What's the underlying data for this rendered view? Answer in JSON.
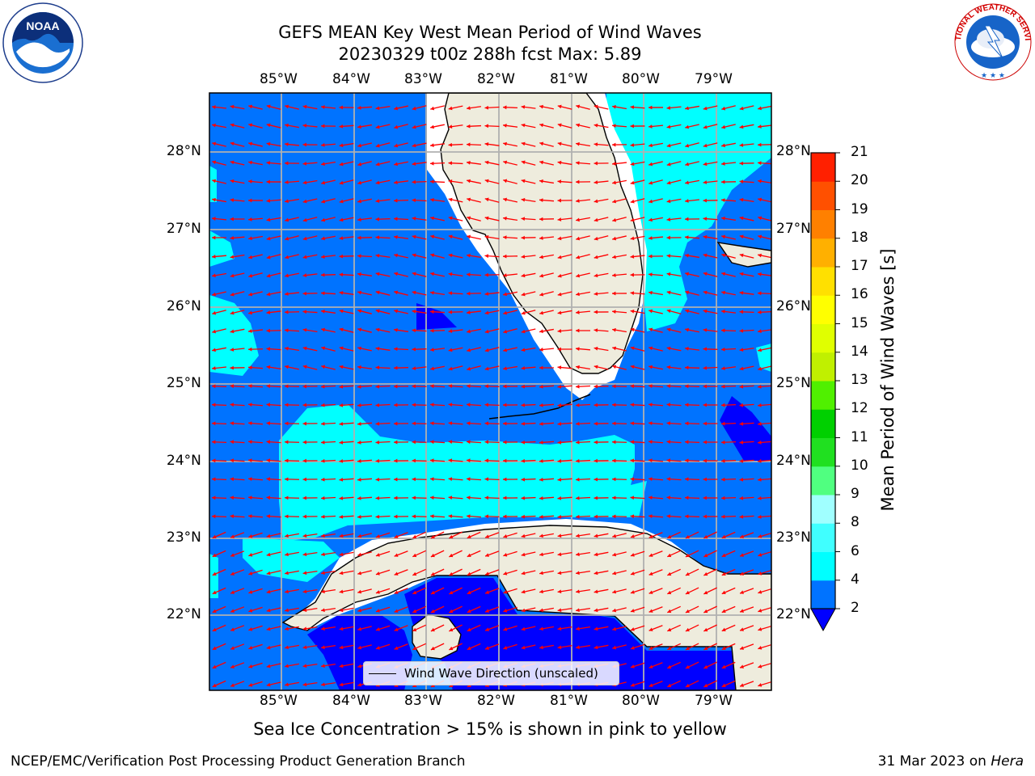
{
  "title": {
    "line1": "GEFS MEAN Key West Mean Period of Wind Waves",
    "line2": "20230329 t00z 288h fcst    Max: 5.89"
  },
  "map": {
    "lon_labels": [
      "85°W",
      "84°W",
      "83°W",
      "82°W",
      "81°W",
      "80°W",
      "79°W"
    ],
    "lat_labels": [
      "28°N",
      "27°N",
      "26°N",
      "25°N",
      "24°N",
      "23°N",
      "22°N"
    ],
    "land_color": "#eeecdd",
    "coastline_color": "#000000",
    "gridline_color": "#b0b0b0",
    "arrow_color": "#ff0000"
  },
  "legend": {
    "label": "Wind Wave Direction (unscaled)"
  },
  "colorbar": {
    "title": "Mean Period of Wind Waves [s]",
    "ticks": [
      "2",
      "4",
      "6",
      "8",
      "9",
      "10",
      "11",
      "12",
      "13",
      "14",
      "15",
      "16",
      "17",
      "18",
      "19",
      "20",
      "21"
    ],
    "colors": [
      "#0073ff",
      "#00ffff",
      "#40ffff",
      "#a0ffff",
      "#50ff80",
      "#20e020",
      "#00d000",
      "#50f000",
      "#c0f000",
      "#e0ff00",
      "#ffff00",
      "#ffe000",
      "#ffb000",
      "#ff8000",
      "#ff5000",
      "#ff2000",
      "#ff0000"
    ],
    "under_color": "#0000ff"
  },
  "chart_data": {
    "type": "heatmap",
    "title": "GEFS MEAN Key West Mean Period of Wind Waves",
    "subtitle": "20230329 t00z 288h fcst    Max: 5.89",
    "variable": "Mean Period of Wind Waves [s]",
    "max": 5.89,
    "xlim": [
      "86°W",
      "78.5°W"
    ],
    "ylim": [
      "21°N",
      "28.8°N"
    ],
    "levels": [
      2,
      4,
      6,
      8,
      9,
      10,
      11,
      12,
      13,
      14,
      15,
      16,
      17,
      18,
      19,
      20,
      21
    ],
    "vectors": "Wind Wave Direction (unscaled)"
  },
  "notes": {
    "sea_ice": "Sea Ice Concentration > 15% is shown in pink to yellow"
  },
  "footer": {
    "left": "NCEP/EMC/Verification Post Processing Product Generation Branch",
    "right_date": "31 Mar 2023 on ",
    "right_host": "Hera"
  },
  "logos": {
    "noaa_text": "NOAA",
    "nws_text": "NATIONAL WEATHER SERVICE"
  }
}
